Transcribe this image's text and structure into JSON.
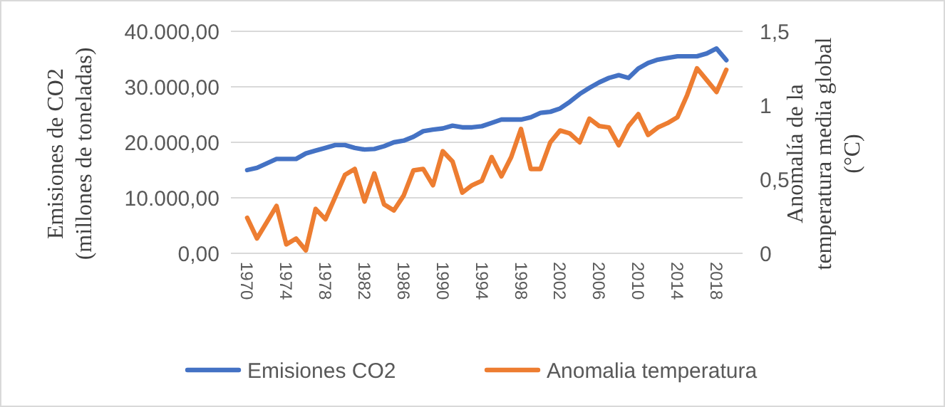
{
  "chart_data": {
    "type": "line",
    "categories": [
      "1970",
      null,
      null,
      null,
      "1974",
      null,
      null,
      null,
      "1978",
      null,
      null,
      null,
      "1982",
      null,
      null,
      null,
      "1986",
      null,
      null,
      null,
      "1990",
      null,
      null,
      null,
      "1994",
      null,
      null,
      null,
      "1998",
      null,
      null,
      null,
      "2002",
      null,
      null,
      null,
      "2006",
      null,
      null,
      null,
      "2010",
      null,
      null,
      null,
      "2014",
      null,
      null,
      null,
      "2018",
      null
    ],
    "series": [
      {
        "name": "Emisiones CO2",
        "color": "#4472c4",
        "values": [
          15000,
          15400,
          16200,
          17000,
          17000,
          17000,
          18000,
          18500,
          19000,
          19500,
          19500,
          19000,
          18700,
          18800,
          19300,
          20000,
          20300,
          21000,
          22000,
          22300,
          22500,
          23000,
          22700,
          22700,
          22900,
          23500,
          24100,
          24100,
          24100,
          24500,
          25300,
          25500,
          26100,
          27300,
          28700,
          29800,
          30800,
          31600,
          32100,
          31600,
          33300,
          34300,
          34900,
          35200,
          35500,
          35500,
          35500,
          36000,
          36900,
          34800
        ]
      },
      {
        "name": "Anomalia temperatura",
        "color": "#ed7d31",
        "axis": "y2",
        "values": [
          0.24,
          0.1,
          0.21,
          0.32,
          0.06,
          0.1,
          0.02,
          0.3,
          0.23,
          0.38,
          0.53,
          0.57,
          0.35,
          0.54,
          0.33,
          0.29,
          0.39,
          0.56,
          0.57,
          0.46,
          0.69,
          0.62,
          0.41,
          0.46,
          0.49,
          0.65,
          0.52,
          0.65,
          0.84,
          0.57,
          0.57,
          0.75,
          0.83,
          0.81,
          0.75,
          0.91,
          0.86,
          0.85,
          0.73,
          0.86,
          0.94,
          0.8,
          0.85,
          0.88,
          0.92,
          1.07,
          1.25,
          1.17,
          1.09,
          1.24
        ]
      }
    ],
    "ylabel": "Emisiones de CO2\n(millones de toneladas)",
    "y2label": "Anomalía de la\ntemperatura media global\n(°C)",
    "ylim": [
      0,
      40000
    ],
    "yticks": [
      {
        "value": 0,
        "label": "0,00"
      },
      {
        "value": 10000,
        "label": "10.000,00"
      },
      {
        "value": 20000,
        "label": "20.000,00"
      },
      {
        "value": 30000,
        "label": "30.000,00"
      },
      {
        "value": 40000,
        "label": "40.000,00"
      }
    ],
    "y2lim": [
      0,
      1.5
    ],
    "y2ticks": [
      0,
      {
        "value": 0.5,
        "label": "0,5"
      },
      1,
      {
        "value": 1.5,
        "label": "1,5"
      }
    ],
    "grid": "y",
    "legend": "bottom",
    "marker": "none",
    "line_style": "solid"
  }
}
